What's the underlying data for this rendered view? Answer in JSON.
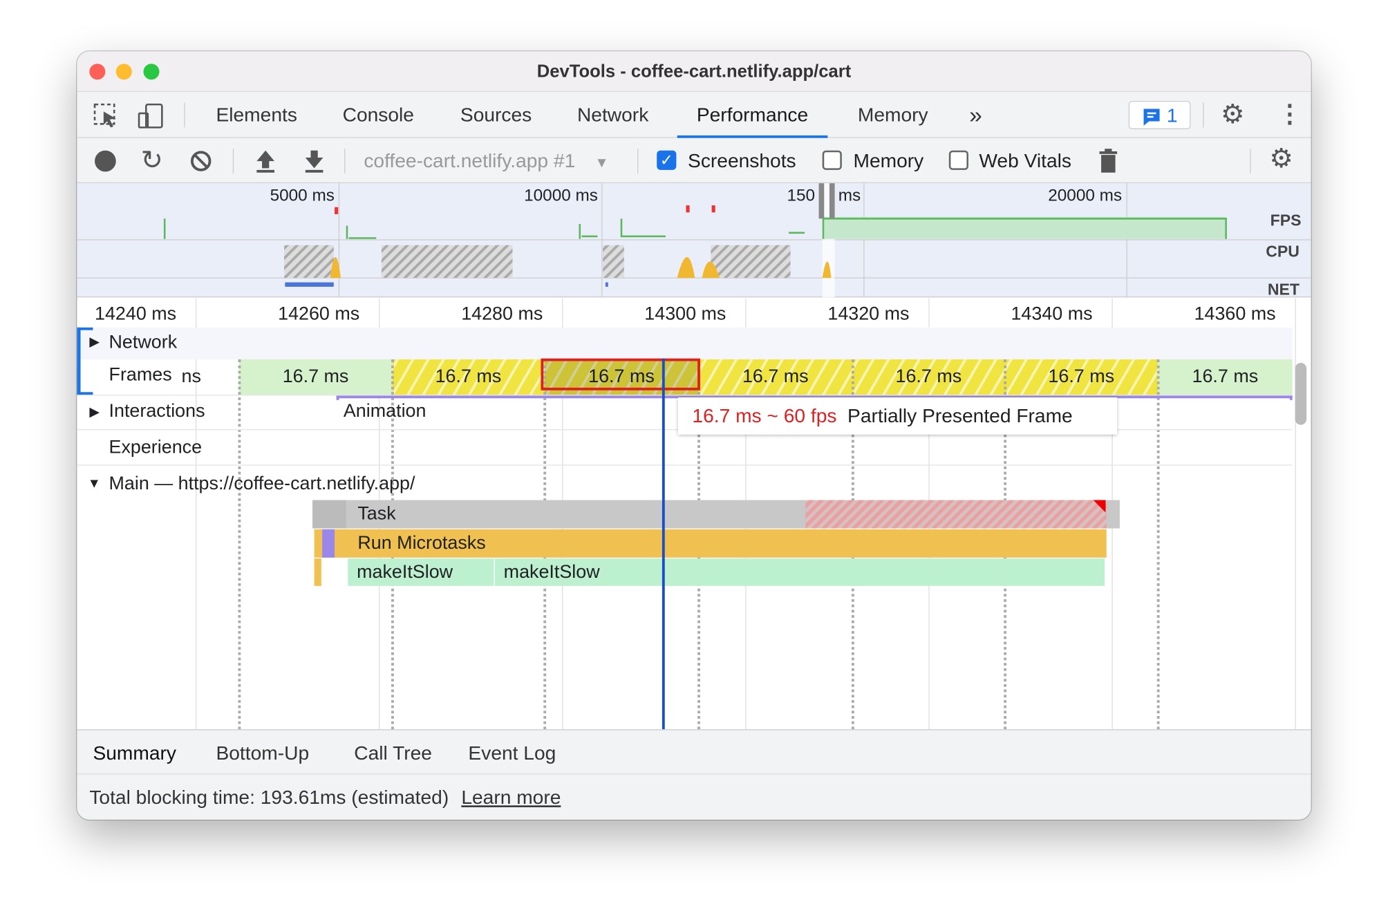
{
  "window": {
    "title": "DevTools - coffee-cart.netlify.app/cart"
  },
  "tabs": [
    {
      "label": "Elements"
    },
    {
      "label": "Console"
    },
    {
      "label": "Sources"
    },
    {
      "label": "Network"
    },
    {
      "label": "Performance",
      "active": true
    },
    {
      "label": "Memory"
    }
  ],
  "more_tabs_icon": "»",
  "issues_badge": {
    "count": "1"
  },
  "toolbar": {
    "profile_select": "coffee-cart.netlify.app #1",
    "screenshots_label": "Screenshots",
    "screenshots_checked": true,
    "memory_label": "Memory",
    "memory_checked": false,
    "webvitals_label": "Web Vitals",
    "webvitals_checked": false
  },
  "overview": {
    "ticks": [
      "5000 ms",
      "10000 ms",
      "150",
      "ms",
      "20000 ms"
    ],
    "fps_label": "FPS",
    "cpu_label": "CPU",
    "net_label": "NET"
  },
  "ruler": [
    "14240 ms",
    "14260 ms",
    "14280 ms",
    "14300 ms",
    "14320 ms",
    "14340 ms",
    "14360 ms"
  ],
  "tracks": {
    "network": "Network",
    "frames": "Frames",
    "frames_partial": "ns",
    "interactions": "Interactions",
    "animation": "Animation",
    "experience": "Experience",
    "main": "Main — https://coffee-cart.netlify.app/"
  },
  "frames": [
    {
      "duration": "16.7 ms",
      "state": "idle"
    },
    {
      "duration": "16.7 ms",
      "state": "partial"
    },
    {
      "duration": "16.7 ms",
      "state": "partial",
      "selected": true
    },
    {
      "duration": "16.7 ms",
      "state": "partial"
    },
    {
      "duration": "16.7 ms",
      "state": "partial"
    },
    {
      "duration": "16.7 ms",
      "state": "partial"
    },
    {
      "duration": "16.7 ms",
      "state": "idle"
    }
  ],
  "tooltip": {
    "fps": "16.7 ms ~ 60 fps",
    "description": "Partially Presented Frame"
  },
  "flame": {
    "task": "Task",
    "microtasks": "Run Microtasks",
    "fn1": "makeItSlow",
    "fn2": "makeItSlow"
  },
  "colors": {
    "task": "#c8c8c8",
    "microtasks": "#f0c150",
    "function": "#bdf0cf",
    "selection": "#e02020",
    "cursor": "#1a4fc4",
    "accent": "#1a73e8"
  },
  "bottom_tabs": [
    {
      "label": "Summary",
      "active": true
    },
    {
      "label": "Bottom-Up"
    },
    {
      "label": "Call Tree"
    },
    {
      "label": "Event Log"
    }
  ],
  "status": {
    "text": "Total blocking time: 193.61ms (estimated)",
    "link": "Learn more"
  }
}
